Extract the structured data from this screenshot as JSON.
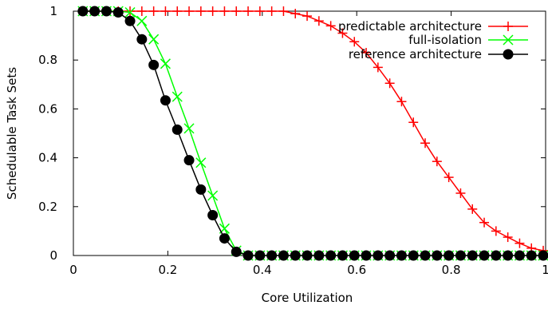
{
  "chart_data": {
    "type": "line",
    "title": "",
    "xlabel": "Core Utilization",
    "ylabel": "Schedulable Task Sets",
    "xlim": [
      0,
      1
    ],
    "ylim": [
      0,
      1
    ],
    "x_ticks": [
      "0",
      "0.2",
      "0.4",
      "0.6",
      "0.8",
      "1"
    ],
    "y_ticks": [
      "0",
      "0.2",
      "0.4",
      "0.6",
      "0.8",
      "1"
    ],
    "grid": false,
    "legend_position": "top-right",
    "series": [
      {
        "name": "predictable architecture",
        "color": "#ff0000",
        "marker": "plus",
        "x": [
          0.02,
          0.045,
          0.07,
          0.095,
          0.12,
          0.145,
          0.17,
          0.195,
          0.22,
          0.245,
          0.27,
          0.295,
          0.32,
          0.345,
          0.37,
          0.395,
          0.42,
          0.445,
          0.47,
          0.495,
          0.52,
          0.545,
          0.57,
          0.595,
          0.62,
          0.645,
          0.67,
          0.695,
          0.72,
          0.745,
          0.77,
          0.795,
          0.82,
          0.845,
          0.87,
          0.895,
          0.92,
          0.945,
          0.97,
          0.995
        ],
        "y": [
          1,
          1,
          1,
          1,
          1,
          1,
          1,
          1,
          1,
          1,
          1,
          1,
          1,
          1,
          1,
          1,
          1,
          1,
          0.99,
          0.98,
          0.96,
          0.94,
          0.91,
          0.875,
          0.83,
          0.77,
          0.705,
          0.63,
          0.545,
          0.46,
          0.385,
          0.32,
          0.255,
          0.19,
          0.135,
          0.1,
          0.075,
          0.05,
          0.03,
          0.02
        ]
      },
      {
        "name": "full-isolation",
        "color": "#00ff00",
        "marker": "cross",
        "x": [
          0.02,
          0.045,
          0.07,
          0.095,
          0.12,
          0.145,
          0.17,
          0.195,
          0.22,
          0.245,
          0.27,
          0.295,
          0.32,
          0.345,
          0.37,
          0.395,
          0.42,
          0.445,
          0.47,
          0.495,
          0.52,
          0.545,
          0.57,
          0.595,
          0.62,
          0.645,
          0.67,
          0.695,
          0.72,
          0.745,
          0.77,
          0.795,
          0.82,
          0.845,
          0.87,
          0.895,
          0.92,
          0.945,
          0.97,
          0.995
        ],
        "y": [
          1,
          1,
          1,
          1,
          0.995,
          0.96,
          0.885,
          0.785,
          0.65,
          0.52,
          0.38,
          0.245,
          0.11,
          0.02,
          0,
          0,
          0,
          0,
          0,
          0,
          0,
          0,
          0,
          0,
          0,
          0,
          0,
          0,
          0,
          0,
          0,
          0,
          0,
          0,
          0,
          0,
          0,
          0,
          0,
          0
        ]
      },
      {
        "name": "reference architecture",
        "color": "#000000",
        "marker": "circle",
        "x": [
          0.02,
          0.045,
          0.07,
          0.095,
          0.12,
          0.145,
          0.17,
          0.195,
          0.22,
          0.245,
          0.27,
          0.295,
          0.32,
          0.345,
          0.37,
          0.395,
          0.42,
          0.445,
          0.47,
          0.495,
          0.52,
          0.545,
          0.57,
          0.595,
          0.62,
          0.645,
          0.67,
          0.695,
          0.72,
          0.745,
          0.77,
          0.795,
          0.82,
          0.845,
          0.87,
          0.895,
          0.92,
          0.945,
          0.97,
          0.995
        ],
        "y": [
          1,
          1,
          1,
          0.995,
          0.96,
          0.885,
          0.78,
          0.635,
          0.515,
          0.39,
          0.27,
          0.165,
          0.07,
          0.015,
          0,
          0,
          0,
          0,
          0,
          0,
          0,
          0,
          0,
          0,
          0,
          0,
          0,
          0,
          0,
          0,
          0,
          0,
          0,
          0,
          0,
          0,
          0,
          0,
          0,
          0
        ]
      }
    ]
  }
}
